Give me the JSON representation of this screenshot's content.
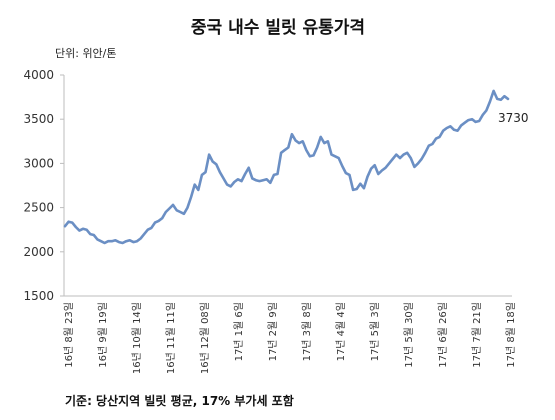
{
  "chart_data": {
    "type": "line",
    "title": "중국 내수 빌릿 유통가격",
    "unit_label": "단위: 위안/톤",
    "note": "기준: 당산지역 빌릿 평균, 17% 부가세 포함",
    "ylim": [
      1500,
      4000
    ],
    "yticks": [
      1500,
      2000,
      2500,
      3000,
      3500,
      4000
    ],
    "xticks": [
      "16년 8월 23일",
      "16년 9월 19일",
      "16년 10월 14일",
      "16년 11월 11일",
      "16년 12월 08일",
      "17년 1월 6일",
      "17년 2월 9일",
      "17년 3월 8일",
      "17년 4월 4일",
      "17년 5월 3일",
      "17년 5월 30일",
      "17년 6월 26일",
      "17년 7월 21일",
      "17년 8월 18일"
    ],
    "grid": false,
    "legend": "none",
    "line_color": "#6b8fc4",
    "last_value_label": "3730",
    "series": [
      {
        "values": [
          2290,
          2340,
          2330,
          2280,
          2240,
          2260,
          2250,
          2200,
          2190,
          2140,
          2120,
          2100,
          2120,
          2120,
          2130,
          2110,
          2100,
          2120,
          2130,
          2110,
          2120,
          2150,
          2200,
          2250,
          2270,
          2330,
          2350,
          2380,
          2450,
          2490,
          2530,
          2470,
          2450,
          2430,
          2500,
          2620,
          2760,
          2700,
          2870,
          2900,
          3100,
          3020,
          2990,
          2900,
          2830,
          2760,
          2740,
          2790,
          2820,
          2800,
          2880,
          2950,
          2830,
          2810,
          2800,
          2810,
          2820,
          2780,
          2870,
          2880,
          3120,
          3150,
          3180,
          3330,
          3260,
          3230,
          3250,
          3150,
          3080,
          3090,
          3180,
          3300,
          3230,
          3250,
          3100,
          3080,
          3060,
          2970,
          2890,
          2870,
          2700,
          2710,
          2770,
          2720,
          2850,
          2940,
          2980,
          2880,
          2920,
          2950,
          3000,
          3050,
          3100,
          3060,
          3100,
          3120,
          3060,
          2960,
          3000,
          3050,
          3120,
          3200,
          3220,
          3280,
          3300,
          3370,
          3400,
          3420,
          3380,
          3370,
          3430,
          3460,
          3490,
          3500,
          3470,
          3480,
          3550,
          3600,
          3700,
          3820,
          3730,
          3720,
          3760,
          3730
        ]
      }
    ]
  }
}
